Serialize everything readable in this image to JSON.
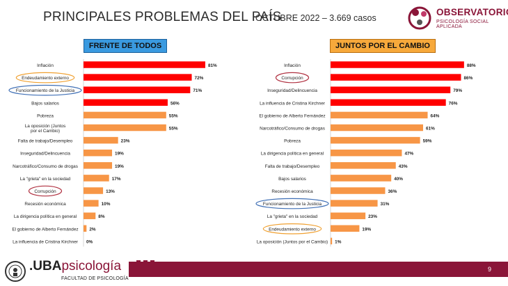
{
  "header": {
    "title": "PRINCIPALES PROBLEMAS DEL PAÍS",
    "subtitle": "OCTUBRE 2022 – 3.669 casos",
    "logo_main": "OBSERVATORIO",
    "logo_sub": "PSICOLOGÍA SOCIAL APLICADA"
  },
  "footer": {
    "uba_prefix": ".UBA",
    "uba_psi": "psicología",
    "faculty": "FACULTAD DE PSICOLOGÍA",
    "page_number": "9"
  },
  "colors": {
    "bar_red": "#ff0000",
    "bar_orange": "#f79646",
    "circle_orange": "#f0a030",
    "circle_blue": "#3f6fb5",
    "circle_red": "#b03040",
    "brand": "#8a1538"
  },
  "chart_data": [
    {
      "type": "bar",
      "orientation": "horizontal",
      "title": "FRENTE DE TODOS",
      "categories": [
        "Inflación",
        "Endeudamiento externo",
        "Funcionamiento de la Justicia",
        "Bajos salarios",
        "Pobreza",
        "La oposición (Juntos por el Cambio)",
        "Falta de trabajo/Desempleo",
        "Inseguridad/Delincuencia",
        "Narcotráfico/Consumo de drogas",
        "La \"grieta\" en la sociedad",
        "Corrupción",
        "Recesión económica",
        "La dirigencia política en general",
        "El gobierno de Alberto Fernández",
        "La influencia de Cristina Kirchner"
      ],
      "values": [
        81,
        72,
        71,
        56,
        55,
        55,
        23,
        19,
        19,
        17,
        13,
        10,
        8,
        2,
        0
      ],
      "labels": [
        "81%",
        "72%",
        "71%",
        "56%",
        "55%",
        "55%",
        "23%",
        "19%",
        "19%",
        "17%",
        "13%",
        "10%",
        "8%",
        "2%",
        "0%"
      ],
      "colors": [
        "red",
        "red",
        "red",
        "red",
        "orange",
        "orange",
        "orange",
        "orange",
        "orange",
        "orange",
        "orange",
        "orange",
        "orange",
        "orange",
        "orange"
      ],
      "highlights": [
        {
          "index": 1,
          "color": "orange"
        },
        {
          "index": 2,
          "color": "blue"
        },
        {
          "index": 10,
          "color": "red"
        }
      ],
      "xlim": [
        0,
        100
      ]
    },
    {
      "type": "bar",
      "orientation": "horizontal",
      "title": "JUNTOS POR EL CAMBIO",
      "categories": [
        "Inflación",
        "Corrupción",
        "Inseguridad/Delincuencia",
        "La influencia de Cristina Kirchner",
        "El gobierno de Alberto Fernández",
        "Narcotráfico/Consumo de drogas",
        "Pobreza",
        "La dirigencia política en general",
        "Falta de trabajo/Desempleo",
        "Bajos salarios",
        "Recesión económica",
        "Funcionamiento de la Justicia",
        "La \"grieta\" en la sociedad",
        "Endeudamiento externo",
        "La oposición (Juntos por el Cambio)"
      ],
      "values": [
        88,
        86,
        79,
        76,
        64,
        61,
        59,
        47,
        43,
        40,
        36,
        31,
        23,
        19,
        1
      ],
      "labels": [
        "88%",
        "86%",
        "79%",
        "76%",
        "64%",
        "61%",
        "59%",
        "47%",
        "43%",
        "40%",
        "36%",
        "31%",
        "23%",
        "19%",
        "1%"
      ],
      "colors": [
        "red",
        "red",
        "red",
        "red",
        "orange",
        "orange",
        "orange",
        "orange",
        "orange",
        "orange",
        "orange",
        "orange",
        "orange",
        "orange",
        "orange"
      ],
      "highlights": [
        {
          "index": 1,
          "color": "red"
        },
        {
          "index": 11,
          "color": "blue"
        },
        {
          "index": 13,
          "color": "orange"
        }
      ],
      "xlim": [
        0,
        100
      ]
    }
  ]
}
